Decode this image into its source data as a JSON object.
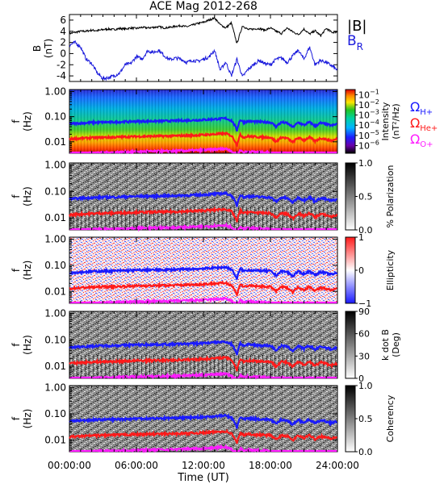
{
  "chart_data": {
    "type": "line",
    "title": "ACE Mag 2012-268",
    "xlabel": "Time (UT)",
    "x_ticks": [
      "00:00:00",
      "06:00:00",
      "12:00:00",
      "18:00:00",
      "24:00:00"
    ],
    "xlim_hours": [
      0,
      24
    ],
    "top_panel": {
      "ylabel": [
        "B",
        "(nT)"
      ],
      "ylim": [
        -5,
        7
      ],
      "y_ticks": [
        "6",
        "4",
        "2",
        "0",
        "-2",
        "-4"
      ],
      "legend_title": "|B|",
      "legend_br": "B",
      "legend_br_sub": "R",
      "series": [
        {
          "name": "|B|",
          "color": "#000000",
          "x": [
            0,
            0.5,
            1,
            1.5,
            2,
            2.5,
            3,
            3.5,
            4,
            4.5,
            5,
            5.5,
            6,
            6.5,
            7,
            7.5,
            8,
            8.5,
            9,
            9.5,
            10,
            10.5,
            11,
            11.5,
            12,
            12.5,
            13,
            13.5,
            14,
            14.5,
            15,
            15.5,
            16,
            16.5,
            17,
            17.5,
            18,
            18.5,
            19,
            19.5,
            20,
            20.5,
            21,
            21.5,
            22,
            22.5,
            23,
            23.5,
            24
          ],
          "y": [
            3.6,
            3.8,
            4.0,
            4.0,
            4.2,
            4.1,
            4.3,
            4.4,
            4.3,
            4.5,
            4.4,
            4.6,
            4.5,
            4.7,
            4.6,
            4.7,
            4.8,
            4.6,
            4.7,
            4.9,
            5.0,
            4.8,
            5.1,
            5.4,
            5.6,
            6.0,
            6.4,
            5.2,
            4.6,
            5.5,
            1.8,
            5.0,
            4.3,
            4.4,
            4.5,
            4.2,
            4.6,
            4.0,
            3.6,
            4.6,
            3.9,
            3.4,
            4.4,
            3.5,
            4.1,
            3.2,
            4.5,
            3.8,
            3.9
          ]
        },
        {
          "name": "BR",
          "color": "#1a1adc",
          "x": [
            0,
            0.5,
            1,
            1.5,
            2,
            2.5,
            3,
            3.5,
            4,
            4.5,
            5,
            5.5,
            6,
            6.5,
            7,
            7.5,
            8,
            8.5,
            9,
            9.5,
            10,
            10.5,
            11,
            11.5,
            12,
            12.5,
            13,
            13.5,
            14,
            14.5,
            15,
            15.5,
            16,
            16.5,
            17,
            17.5,
            18,
            18.5,
            19,
            19.5,
            20,
            20.5,
            21,
            21.5,
            22,
            22.5,
            23,
            23.5,
            24
          ],
          "y": [
            1.5,
            2.0,
            1.2,
            -1.0,
            -1.8,
            -3.5,
            -4.5,
            -4.3,
            -4.0,
            -3.5,
            -2.0,
            -1.8,
            -0.5,
            -1.0,
            0.5,
            0.2,
            0.6,
            -0.4,
            -1.1,
            -0.8,
            -1.0,
            -1.6,
            -1.2,
            -1.4,
            -1.0,
            -0.6,
            0.6,
            -3.0,
            -1.5,
            -4.0,
            -1.0,
            -4.2,
            -2.8,
            -2.0,
            -1.2,
            -1.8,
            -2.0,
            -1.0,
            -0.8,
            -1.6,
            -0.4,
            0.6,
            -1.0,
            1.2,
            -2.0,
            -1.2,
            -1.6,
            -2.2,
            -3.0
          ]
        }
      ]
    },
    "spectrogram_panels": [
      {
        "id": "intensity",
        "colorbar_label": [
          "Intensity",
          "(nT²/Hz)"
        ],
        "colorbar_ticks": [
          "10",
          "10",
          "10",
          "10",
          "10",
          "10"
        ],
        "colorbar_exps": [
          "−1",
          "−2",
          "−3",
          "−4",
          "−5",
          "−6"
        ],
        "colormap": "rainbow"
      },
      {
        "id": "polarization",
        "colorbar_label": [
          "% Polarization"
        ],
        "colorbar_ticks": [
          "1.0",
          "0.5",
          "0.0"
        ],
        "colormap": "gray"
      },
      {
        "id": "ellipticity",
        "colorbar_label": [
          "Ellipticity"
        ],
        "colorbar_ticks": [
          "1",
          "0",
          "−1"
        ],
        "colormap": "bwr"
      },
      {
        "id": "kdotb",
        "colorbar_label": [
          "k dot B",
          "(Deg)"
        ],
        "colorbar_ticks": [
          "90",
          "60",
          "30",
          "0"
        ],
        "colormap": "gray"
      },
      {
        "id": "coherency",
        "colorbar_label": [
          "Coherency"
        ],
        "colorbar_ticks": [
          "1.0",
          "0.5",
          "0.0"
        ],
        "colormap": "gray"
      }
    ],
    "spectrogram_ylabel": [
      "f",
      "(Hz)"
    ],
    "spectrogram_ylim_hz": [
      0.0035,
      1.2
    ],
    "spectrogram_yscale": "log",
    "spectrogram_y_ticks": [
      "1.00",
      "0.10",
      "0.01"
    ],
    "gyrofrequency_legend": {
      "symbol": "Ω",
      "entries": [
        {
          "sub": "H+",
          "color": "#1a1aff"
        },
        {
          "sub": "He+",
          "color": "#ff1a1a"
        },
        {
          "sub": "O+",
          "color": "#ff1aff"
        }
      ]
    },
    "gyrofrequency_hplus_hz": {
      "x": [
        0,
        1,
        2,
        3,
        4,
        5,
        6,
        7,
        8,
        9,
        10,
        11,
        12,
        13,
        14,
        14.5,
        15,
        15.3,
        15.6,
        16,
        17,
        18,
        18.5,
        19,
        19.5,
        20,
        20.5,
        21,
        21.5,
        22,
        22.5,
        23,
        23.5,
        24
      ],
      "y": [
        0.052,
        0.055,
        0.058,
        0.06,
        0.061,
        0.063,
        0.065,
        0.066,
        0.067,
        0.068,
        0.07,
        0.072,
        0.075,
        0.08,
        0.085,
        0.07,
        0.028,
        0.075,
        0.06,
        0.066,
        0.062,
        0.06,
        0.04,
        0.06,
        0.055,
        0.038,
        0.058,
        0.046,
        0.06,
        0.042,
        0.056,
        0.05,
        0.044,
        0.052
      ]
    }
  }
}
